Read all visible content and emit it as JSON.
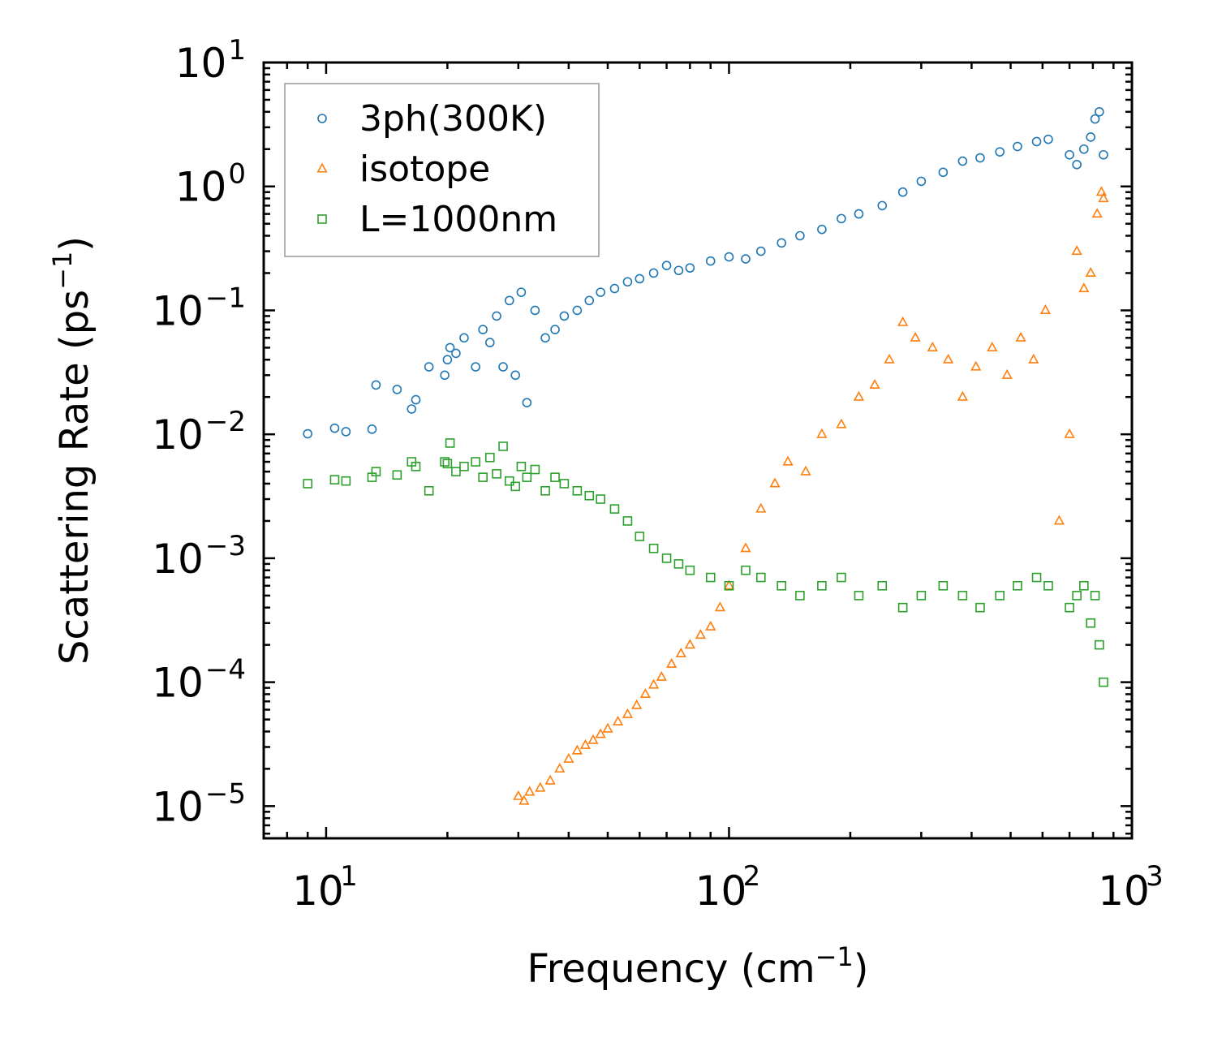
{
  "chart_data": {
    "type": "scatter",
    "xscale": "log",
    "yscale": "log",
    "xlim": [
      7,
      1000
    ],
    "ylim": [
      5.5e-06,
      10
    ],
    "xlabel": "Frequency (cm",
    "xlabel_sup": "−1",
    "xlabel_close": ")",
    "ylabel": "Scattering Rate (ps",
    "ylabel_sup": "−1",
    "ylabel_close": ")",
    "x_ticks": [
      {
        "value": 10,
        "base": "10",
        "exp": "1"
      },
      {
        "value": 100,
        "base": "10",
        "exp": "2"
      },
      {
        "value": 1000,
        "base": "10",
        "exp": "3"
      }
    ],
    "y_ticks": [
      {
        "value": 10,
        "base": "10",
        "exp": "1"
      },
      {
        "value": 1,
        "base": "10",
        "exp": "0"
      },
      {
        "value": 0.1,
        "base": "10",
        "exp": "−1"
      },
      {
        "value": 0.01,
        "base": "10",
        "exp": "−2"
      },
      {
        "value": 0.001,
        "base": "10",
        "exp": "−3"
      },
      {
        "value": 0.0001,
        "base": "10",
        "exp": "−4"
      },
      {
        "value": 1e-05,
        "base": "10",
        "exp": "−5"
      }
    ],
    "legend_position": "top-left",
    "series": [
      {
        "name": "3ph(300K)",
        "marker": "circle",
        "color": "#1f77b4",
        "x": [
          9,
          10.5,
          11.2,
          13,
          13.3,
          15,
          16.3,
          16.7,
          18,
          19.7,
          20,
          20.3,
          21,
          22,
          23.5,
          24.5,
          25.5,
          26.5,
          27.5,
          28.5,
          29.5,
          30.5,
          31.5,
          33,
          35,
          37,
          39,
          42,
          45,
          48,
          52,
          56,
          60,
          65,
          70,
          75,
          80,
          90,
          100,
          110,
          120,
          135,
          150,
          170,
          190,
          210,
          240,
          270,
          300,
          340,
          380,
          420,
          470,
          520,
          580,
          620,
          700,
          730,
          760,
          790,
          810,
          830,
          850
        ],
        "y": [
          0.0101,
          0.0112,
          0.0105,
          0.011,
          0.025,
          0.023,
          0.016,
          0.019,
          0.035,
          0.03,
          0.04,
          0.05,
          0.045,
          0.06,
          0.035,
          0.07,
          0.055,
          0.09,
          0.035,
          0.12,
          0.03,
          0.14,
          0.018,
          0.1,
          0.06,
          0.07,
          0.09,
          0.1,
          0.12,
          0.14,
          0.15,
          0.17,
          0.18,
          0.2,
          0.23,
          0.21,
          0.22,
          0.25,
          0.27,
          0.26,
          0.3,
          0.35,
          0.4,
          0.45,
          0.55,
          0.6,
          0.7,
          0.9,
          1.1,
          1.3,
          1.6,
          1.7,
          1.9,
          2.1,
          2.3,
          2.4,
          1.8,
          1.5,
          2.0,
          2.5,
          3.5,
          4.0,
          1.8
        ]
      },
      {
        "name": "isotope",
        "marker": "triangle",
        "color": "#ff7f0e",
        "x": [
          30,
          31,
          32,
          34,
          36,
          38,
          40,
          42,
          44,
          46,
          48,
          50,
          53,
          56,
          59,
          62,
          65,
          68,
          72,
          76,
          80,
          85,
          90,
          95,
          100,
          110,
          120,
          130,
          140,
          155,
          170,
          190,
          210,
          230,
          250,
          270,
          290,
          320,
          350,
          380,
          410,
          450,
          490,
          530,
          570,
          610,
          660,
          700,
          730,
          760,
          790,
          820,
          840,
          850
        ],
        "y": [
          1.2e-05,
          1.1e-05,
          1.3e-05,
          1.4e-05,
          1.6e-05,
          2e-05,
          2.4e-05,
          2.8e-05,
          3.1e-05,
          3.4e-05,
          3.8e-05,
          4.2e-05,
          4.8e-05,
          5.5e-05,
          6.5e-05,
          8e-05,
          9.5e-05,
          0.00011,
          0.00014,
          0.00017,
          0.0002,
          0.00024,
          0.00028,
          0.0004,
          0.0006,
          0.0012,
          0.0025,
          0.004,
          0.006,
          0.005,
          0.01,
          0.012,
          0.02,
          0.025,
          0.04,
          0.08,
          0.06,
          0.05,
          0.04,
          0.02,
          0.035,
          0.05,
          0.03,
          0.06,
          0.04,
          0.1,
          0.002,
          0.01,
          0.3,
          0.15,
          0.2,
          0.6,
          0.9,
          0.8
        ]
      },
      {
        "name": "L=1000nm",
        "marker": "square",
        "color": "#2ca02c",
        "x": [
          9,
          10.5,
          11.2,
          13,
          13.3,
          15,
          16.3,
          16.7,
          18,
          19.7,
          20,
          20.3,
          21,
          22,
          23.5,
          24.5,
          25.5,
          26.5,
          27.5,
          28.5,
          29.5,
          30.5,
          31.5,
          33,
          35,
          37,
          39,
          42,
          45,
          48,
          52,
          56,
          60,
          65,
          70,
          75,
          80,
          90,
          100,
          110,
          120,
          135,
          150,
          170,
          190,
          210,
          240,
          270,
          300,
          340,
          380,
          420,
          470,
          520,
          580,
          620,
          700,
          730,
          760,
          790,
          810,
          830,
          850
        ],
        "y": [
          0.004,
          0.0043,
          0.0042,
          0.0045,
          0.005,
          0.0047,
          0.006,
          0.0055,
          0.0035,
          0.006,
          0.0058,
          0.0085,
          0.005,
          0.0055,
          0.006,
          0.0045,
          0.0065,
          0.0048,
          0.008,
          0.0042,
          0.0038,
          0.0055,
          0.0045,
          0.0052,
          0.0035,
          0.0045,
          0.004,
          0.0035,
          0.0032,
          0.003,
          0.0025,
          0.002,
          0.0015,
          0.0012,
          0.001,
          0.0009,
          0.0008,
          0.0007,
          0.0006,
          0.0008,
          0.0007,
          0.0006,
          0.0005,
          0.0006,
          0.0007,
          0.0005,
          0.0006,
          0.0004,
          0.0005,
          0.0006,
          0.0005,
          0.0004,
          0.0005,
          0.0006,
          0.0007,
          0.0006,
          0.0004,
          0.0005,
          0.0006,
          0.0003,
          0.0005,
          0.0002,
          0.0001
        ]
      }
    ]
  }
}
